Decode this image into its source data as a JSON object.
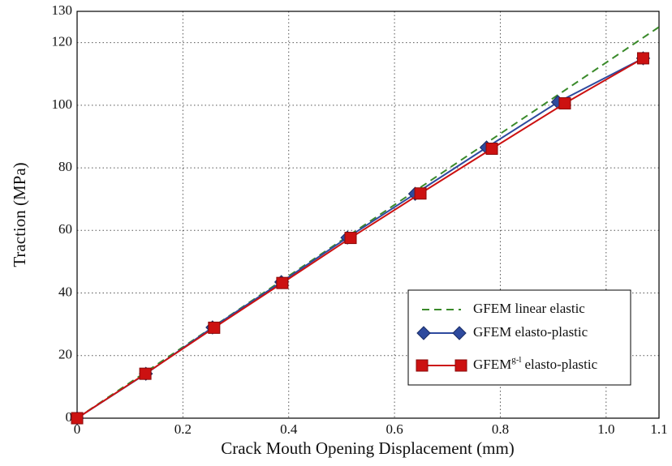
{
  "chart_data": {
    "type": "line",
    "x_label": "Crack Mouth Opening Displacement (mm)",
    "y_label": "Traction (MPa)",
    "xlim": [
      0,
      1.1
    ],
    "xticks": [
      0,
      0.2,
      0.4,
      0.6,
      0.8,
      {
        "value": 1,
        "label": "1.0"
      },
      1.1
    ],
    "ylim": [
      0,
      130
    ],
    "yticks": [
      0,
      20,
      40,
      60,
      80,
      100,
      120,
      130
    ],
    "grid": true,
    "legend": "lower right",
    "series": [
      {
        "name": "GFEM linear elastic",
        "color": "#3a8a2a",
        "dash": true,
        "marker": "none",
        "x": [
          0,
          1.1
        ],
        "values": [
          0,
          125
        ]
      },
      {
        "name": "GFEM elasto-plastic",
        "color": "#2e4a9e",
        "marker": "diamond",
        "x": [
          0,
          0.13,
          0.256,
          0.386,
          0.511,
          0.639,
          0.774,
          0.909,
          1.07
        ],
        "values": [
          0,
          14.2,
          29,
          43.5,
          57.7,
          71.7,
          86.5,
          101,
          115
        ]
      },
      {
        "name": "GFEM",
        "name_sup": "g-l",
        "name_rest": "elasto-plastic",
        "color": "#cc1111",
        "marker": "square",
        "x": [
          0,
          0.129,
          0.259,
          0.388,
          0.517,
          0.649,
          0.784,
          0.922,
          1.07
        ],
        "values": [
          0,
          14.2,
          28.9,
          43.2,
          57.6,
          71.8,
          86.1,
          100.6,
          115
        ]
      }
    ]
  }
}
